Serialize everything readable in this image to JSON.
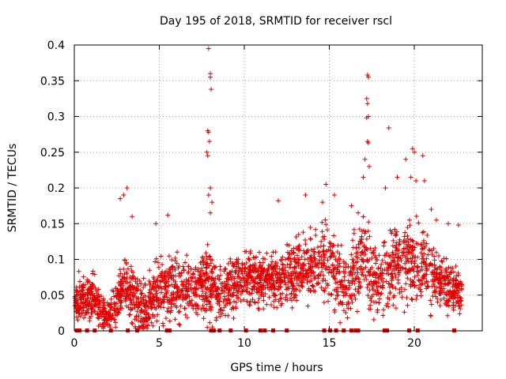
{
  "chart_data": {
    "type": "scatter",
    "title": "Day 195 of 2018, SRMTID for receiver rscl",
    "xlabel": "GPS time / hours",
    "ylabel": "SRMTID / TECUs",
    "xlim": [
      0,
      24
    ],
    "ylim": [
      0,
      0.4
    ],
    "x_ticks": [
      0,
      5,
      10,
      15,
      20
    ],
    "x_tick_labels": [
      "0",
      "5",
      "10",
      "15",
      "20"
    ],
    "y_ticks": [
      0,
      0.05,
      0.1,
      0.15,
      0.2,
      0.25,
      0.3,
      0.35,
      0.4
    ],
    "y_tick_labels": [
      "0",
      "0.05",
      "0.1",
      "0.15",
      "0.2",
      "0.25",
      "0.3",
      "0.35",
      "0.4"
    ],
    "grid": true,
    "marker": "+",
    "marker_color": "#e00000",
    "zero_values_marker": "square",
    "series": [
      {
        "name": "SRMTID",
        "profile": {
          "x": [
            0,
            1,
            2,
            3,
            4,
            5,
            6,
            7,
            7.8,
            8.5,
            9,
            10,
            11,
            12,
            13,
            14,
            15,
            16,
            17,
            18,
            19,
            20,
            21,
            22,
            22.8
          ],
          "typical": [
            0.045,
            0.045,
            0.02,
            0.065,
            0.025,
            0.06,
            0.06,
            0.06,
            0.07,
            0.05,
            0.06,
            0.075,
            0.07,
            0.075,
            0.08,
            0.09,
            0.1,
            0.06,
            0.1,
            0.065,
            0.1,
            0.1,
            0.08,
            0.06,
            0.05
          ],
          "spread": [
            0.03,
            0.035,
            0.025,
            0.045,
            0.04,
            0.045,
            0.045,
            0.04,
            0.05,
            0.035,
            0.04,
            0.035,
            0.035,
            0.035,
            0.045,
            0.05,
            0.06,
            0.045,
            0.06,
            0.055,
            0.065,
            0.055,
            0.05,
            0.035,
            0.03
          ]
        },
        "points": [
          [
            7.9,
            0.395
          ],
          [
            8.0,
            0.36
          ],
          [
            8.0,
            0.355
          ],
          [
            8.05,
            0.338
          ],
          [
            7.85,
            0.28
          ],
          [
            7.9,
            0.278
          ],
          [
            7.95,
            0.265
          ],
          [
            7.8,
            0.25
          ],
          [
            7.85,
            0.245
          ],
          [
            8.0,
            0.2
          ],
          [
            7.9,
            0.19
          ],
          [
            8.1,
            0.18
          ],
          [
            8.0,
            0.165
          ],
          [
            17.25,
            0.358
          ],
          [
            17.3,
            0.355
          ],
          [
            17.2,
            0.325
          ],
          [
            17.25,
            0.318
          ],
          [
            17.3,
            0.3
          ],
          [
            17.2,
            0.298
          ],
          [
            17.25,
            0.265
          ],
          [
            17.3,
            0.263
          ],
          [
            17.1,
            0.24
          ],
          [
            17.0,
            0.215
          ],
          [
            17.35,
            0.23
          ],
          [
            18.5,
            0.284
          ],
          [
            19.9,
            0.255
          ],
          [
            20.0,
            0.25
          ],
          [
            19.5,
            0.24
          ],
          [
            20.5,
            0.245
          ],
          [
            19.8,
            0.215
          ],
          [
            20.1,
            0.21
          ],
          [
            19.0,
            0.215
          ],
          [
            18.3,
            0.2
          ],
          [
            20.6,
            0.21
          ],
          [
            3.1,
            0.2
          ],
          [
            2.9,
            0.19
          ],
          [
            2.7,
            0.185
          ],
          [
            3.4,
            0.16
          ],
          [
            5.5,
            0.162
          ],
          [
            14.8,
            0.205
          ],
          [
            15.3,
            0.19
          ],
          [
            14.6,
            0.18
          ],
          [
            13.6,
            0.19
          ],
          [
            12.0,
            0.182
          ],
          [
            21.0,
            0.17
          ],
          [
            21.3,
            0.155
          ],
          [
            22.0,
            0.15
          ],
          [
            22.6,
            0.148
          ],
          [
            16.3,
            0.175
          ],
          [
            16.7,
            0.165
          ],
          [
            4.8,
            0.15
          ]
        ],
        "zero_points": [
          0.15,
          0.3,
          0.75,
          1.2,
          2.15,
          3.15,
          3.7,
          5.45,
          5.6,
          8.05,
          8.2,
          8.55,
          9.2,
          10.1,
          10.95,
          11.2,
          11.7,
          12.5,
          14.7,
          15.05,
          15.4,
          15.85,
          16.3,
          16.55,
          16.7,
          18.25,
          18.4,
          19.7,
          20.2,
          22.35
        ]
      }
    ]
  }
}
